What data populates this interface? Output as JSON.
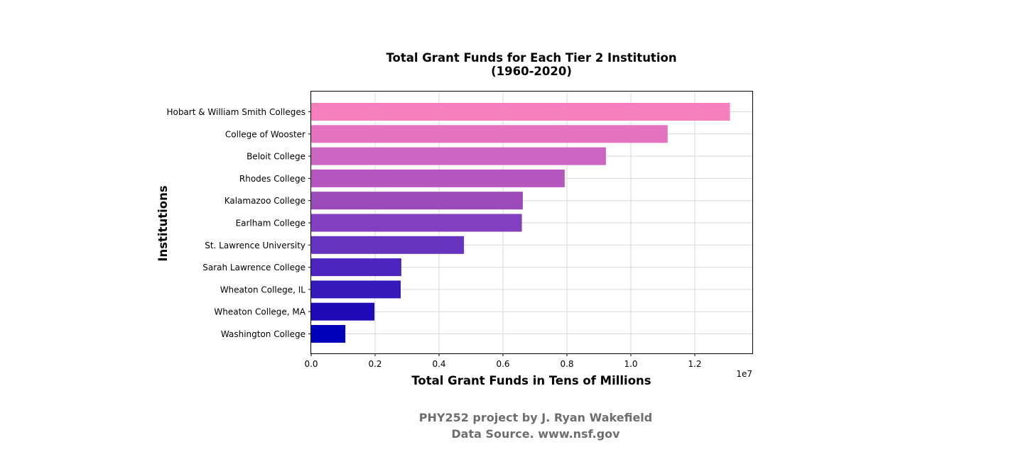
{
  "chart_data": {
    "type": "bar",
    "orientation": "horizontal",
    "title": "Total Grant Funds for Each Tier 2 Institution\n(1960-2020)",
    "xlabel": "Total Grant Funds in Tens of Millions",
    "ylabel": "Institutions",
    "x_offset_label": "1e7",
    "xlim": [
      0,
      1.38
    ],
    "x_ticks": [
      "0.0",
      "0.2",
      "0.4",
      "0.6",
      "0.8",
      "1.0",
      "1.2"
    ],
    "grid": true,
    "categories": [
      "Hobart & William Smith Colleges",
      "College of Wooster",
      "Beloit College",
      "Rhodes College",
      "Kalamazoo College",
      "Earlham College",
      "St. Lawrence University",
      "Sarah Lawrence College",
      "Wheaton College, IL",
      "Wheaton College, MA",
      "Washington College"
    ],
    "values": [
      1.31,
      1.115,
      0.922,
      0.793,
      0.662,
      0.659,
      0.478,
      0.282,
      0.28,
      0.198,
      0.107
    ],
    "colors": [
      "#f77fbe",
      "#e373c1",
      "#ca66c1",
      "#b656bf",
      "#9a4ab9",
      "#823fc0",
      "#6734c0",
      "#4c24be",
      "#3619b9",
      "#1f0ab8",
      "#0000bb"
    ]
  },
  "footer": {
    "line1": "PHY252 project by J. Ryan Wakefield",
    "line2": "Data Source. www.nsf.gov"
  }
}
